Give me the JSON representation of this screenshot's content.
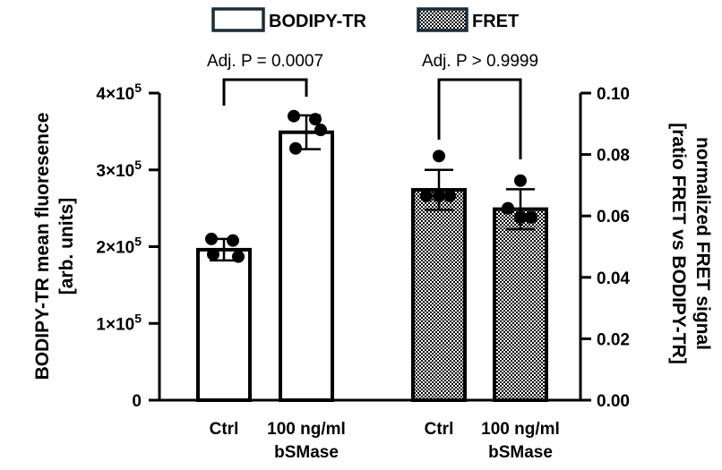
{
  "chart_data": {
    "type": "bar",
    "legend": [
      {
        "label": "BODIPY-TR",
        "pattern": "open"
      },
      {
        "label": "FRET",
        "pattern": "checker"
      }
    ],
    "left_axis": {
      "title_line1": "BODIPY-TR mean fluoresence",
      "title_line2": "[arb. units]",
      "ylim": [
        0,
        400000
      ],
      "ticks": [
        {
          "value": 0,
          "mantissa": "0",
          "exp": ""
        },
        {
          "value": 100000,
          "mantissa": "1×10",
          "exp": "5"
        },
        {
          "value": 200000,
          "mantissa": "2×10",
          "exp": "5"
        },
        {
          "value": 300000,
          "mantissa": "3×10",
          "exp": "5"
        },
        {
          "value": 400000,
          "mantissa": "4×10",
          "exp": "5"
        }
      ]
    },
    "right_axis": {
      "title_line1": "normalized FRET signal",
      "title_line2": "[ratio FRET vs BODIPY-TR]",
      "ylim": [
        0,
        0.1
      ],
      "ticks": [
        {
          "value": 0.0,
          "label": "0.00"
        },
        {
          "value": 0.02,
          "label": "0.02"
        },
        {
          "value": 0.04,
          "label": "0.04"
        },
        {
          "value": 0.06,
          "label": "0.06"
        },
        {
          "value": 0.08,
          "label": "0.08"
        },
        {
          "value": 0.1,
          "label": "0.10"
        }
      ]
    },
    "groups": [
      {
        "series": "BODIPY-TR",
        "axis": "left",
        "comparison": "Adj. P = 0.0007",
        "bars": [
          {
            "label_line1": "Ctrl",
            "label_line2": "",
            "value": 196000,
            "sd": 14000,
            "points": [
              210000,
              208000,
              187000,
              190000
            ]
          },
          {
            "label_line1": "100 ng/ml",
            "label_line2": "bSMase",
            "value": 349000,
            "sd": 22000,
            "points": [
              370000,
              366000,
              352000,
              328000
            ]
          }
        ]
      },
      {
        "series": "FRET",
        "axis": "right",
        "comparison": "Adj. P > 0.9999",
        "bars": [
          {
            "label_line1": "Ctrl",
            "label_line2": "",
            "value": 0.0685,
            "sd": 0.0065,
            "points": [
              0.0795,
              0.0665,
              0.0665,
              0.0665
            ]
          },
          {
            "label_line1": "100 ng/ml",
            "label_line2": "bSMase",
            "value": 0.0622,
            "sd": 0.0065,
            "points": [
              0.0715,
              0.0625,
              0.0595,
              0.0595
            ]
          }
        ]
      }
    ]
  }
}
